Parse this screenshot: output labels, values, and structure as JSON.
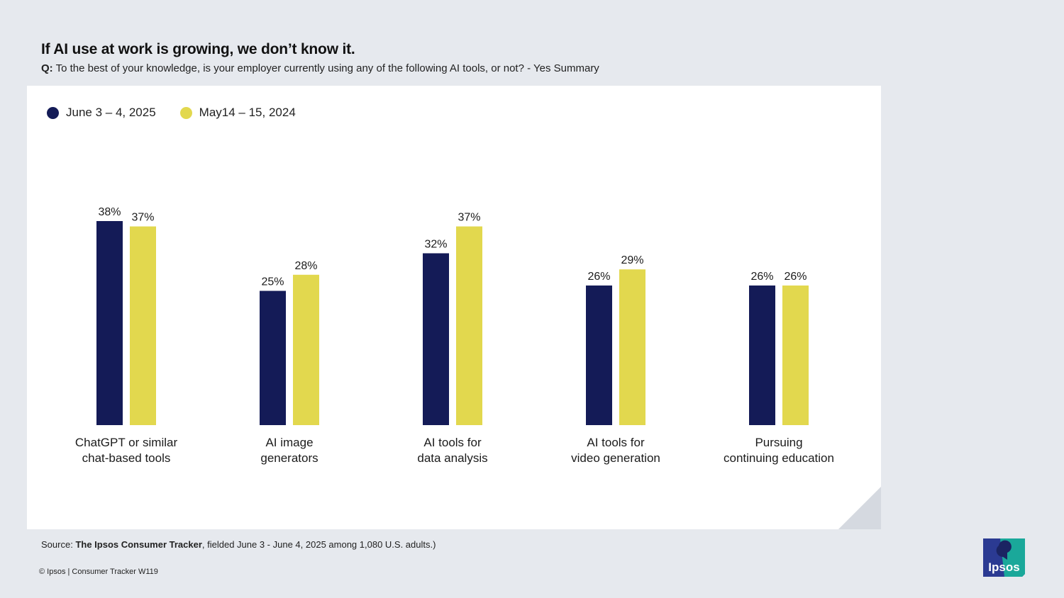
{
  "header": {
    "title": "If AI use at work is growing, we don’t know it.",
    "question_prefix": "Q:",
    "question_text": "To the best of your knowledge, is your employer currently using any of the following AI tools, or not? - Yes Summary"
  },
  "legend": {
    "series_2025": "June 3 – 4, 2025",
    "series_2024": "May14 – 15, 2024"
  },
  "colors": {
    "series_2025": "#141b57",
    "series_2024": "#e2d84e",
    "logo_navy": "#2b3a92",
    "logo_teal": "#1aa89a"
  },
  "chart_data": {
    "type": "bar",
    "categories": [
      [
        "ChatGPT or similar",
        "chat-based tools"
      ],
      [
        "AI image",
        "generators"
      ],
      [
        "AI tools for",
        "data analysis"
      ],
      [
        "AI tools for",
        "video generation"
      ],
      [
        "Pursuing",
        "continuing education"
      ]
    ],
    "series": [
      {
        "name": "June 3 – 4, 2025",
        "values": [
          38,
          25,
          32,
          26,
          26
        ]
      },
      {
        "name": "May14 – 15, 2024",
        "values": [
          37,
          28,
          37,
          29,
          26
        ]
      }
    ],
    "value_suffix": "%",
    "ylim": [
      0,
      38
    ]
  },
  "footer": {
    "source_prefix": "Source:",
    "source_bold": "The Ipsos Consumer Tracker",
    "source_rest": ", fielded June 3 - June 4, 2025 among 1,080 U.S. adults.)",
    "copyright": "© Ipsos | Consumer Tracker W119",
    "logo_text": "Ipsos"
  }
}
